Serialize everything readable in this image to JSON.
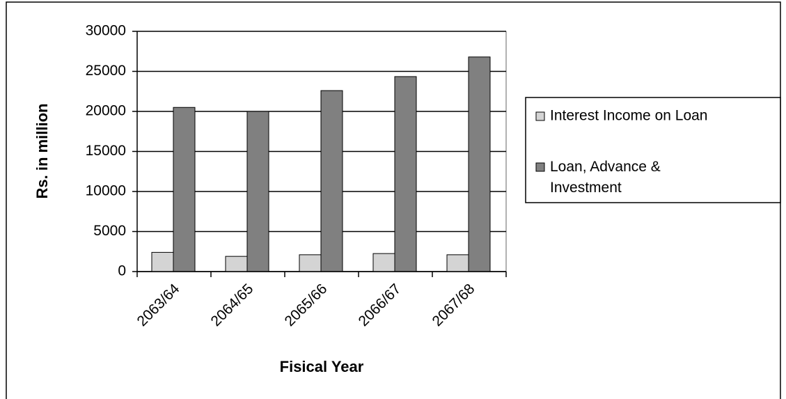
{
  "chart_data": {
    "type": "bar",
    "x_label": "Fisical Year",
    "y_label": "Rs. in million",
    "categories": [
      "2063/64",
      "2064/65",
      "2065/66",
      "2066/67",
      "2067/68"
    ],
    "series": [
      {
        "name": "Interest Income on Loan",
        "color": "#d4d4d4",
        "values": [
          2400,
          1900,
          2100,
          2250,
          2100
        ]
      },
      {
        "name": "Loan, Advance & Investment",
        "color": "#808080",
        "values": [
          20500,
          20000,
          22600,
          24350,
          26800
        ]
      }
    ],
    "ylim": [
      0,
      30000
    ],
    "yticks": [
      0,
      5000,
      10000,
      15000,
      20000,
      25000,
      30000
    ],
    "grid": true,
    "legend": "right"
  }
}
